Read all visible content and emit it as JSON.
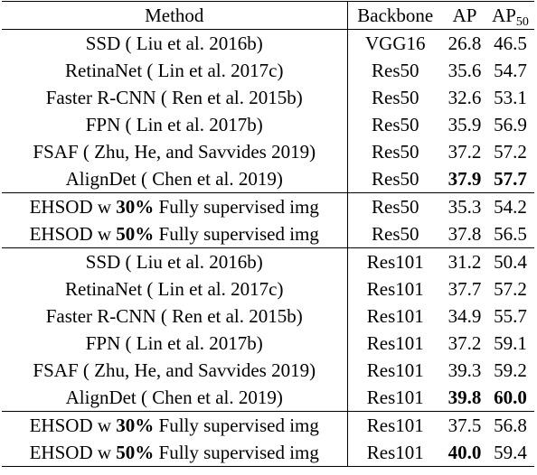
{
  "header": {
    "method": "Method",
    "backbone": "Backbone",
    "ap": "AP",
    "ap50_base": "AP",
    "ap50_sub": "50"
  },
  "rows": [
    {
      "type": "plain",
      "method": "SSD ( Liu et al. 2016b)",
      "backbone": "VGG16",
      "ap": "26.8",
      "ap50": "46.5"
    },
    {
      "type": "plain",
      "method": "RetinaNet ( Lin et al. 2017c)",
      "backbone": "Res50",
      "ap": "35.6",
      "ap50": "54.7"
    },
    {
      "type": "plain",
      "method": "Faster R-CNN ( Ren et al. 2015b)",
      "backbone": "Res50",
      "ap": "32.6",
      "ap50": "53.1"
    },
    {
      "type": "plain",
      "method": "FPN ( Lin et al. 2017b)",
      "backbone": "Res50",
      "ap": "35.9",
      "ap50": "56.9"
    },
    {
      "type": "plain",
      "method": "FSAF ( Zhu, He, and Savvides 2019)",
      "backbone": "Res50",
      "ap": "37.2",
      "ap50": "57.2"
    },
    {
      "type": "plain",
      "method": "AlignDet ( Chen et al. 2019)",
      "backbone": "Res50",
      "ap": "37.9",
      "ap50": "57.7",
      "ap_bold": true,
      "ap50_bold": true
    },
    {
      "type": "ehsod",
      "prefix": "EHSOD w ",
      "pct": "30%",
      "suffix": " Fully supervised img",
      "backbone": "Res50",
      "ap": "35.3",
      "ap50": "54.2"
    },
    {
      "type": "ehsod",
      "prefix": "EHSOD w ",
      "pct": "50%",
      "suffix": " Fully supervised img",
      "backbone": "Res50",
      "ap": "37.8",
      "ap50": "56.5"
    },
    {
      "type": "plain",
      "method": "SSD ( Liu et al. 2016b)",
      "backbone": "Res101",
      "ap": "31.2",
      "ap50": "50.4"
    },
    {
      "type": "plain",
      "method": "RetinaNet ( Lin et al. 2017c)",
      "backbone": "Res101",
      "ap": "37.7",
      "ap50": "57.2"
    },
    {
      "type": "plain",
      "method": "Faster R-CNN ( Ren et al. 2015b)",
      "backbone": "Res101",
      "ap": "34.9",
      "ap50": "55.7"
    },
    {
      "type": "plain",
      "method": "FPN ( Lin et al. 2017b)",
      "backbone": "Res101",
      "ap": "37.2",
      "ap50": "59.1"
    },
    {
      "type": "plain",
      "method": "FSAF ( Zhu, He, and Savvides 2019)",
      "backbone": "Res101",
      "ap": "39.3",
      "ap50": "59.2"
    },
    {
      "type": "plain",
      "method": "AlignDet ( Chen et al. 2019)",
      "backbone": "Res101",
      "ap": "39.8",
      "ap50": "60.0",
      "ap_bold": true,
      "ap50_bold": true
    },
    {
      "type": "ehsod",
      "prefix": "EHSOD w ",
      "pct": "30%",
      "suffix": " Fully supervised img",
      "backbone": "Res101",
      "ap": "37.5",
      "ap50": "56.8"
    },
    {
      "type": "ehsod",
      "prefix": "EHSOD w ",
      "pct": "50%",
      "suffix": " Fully supervised img",
      "backbone": "Res101",
      "ap": "40.0",
      "ap50": "59.4",
      "ap_bold": true
    }
  ]
}
